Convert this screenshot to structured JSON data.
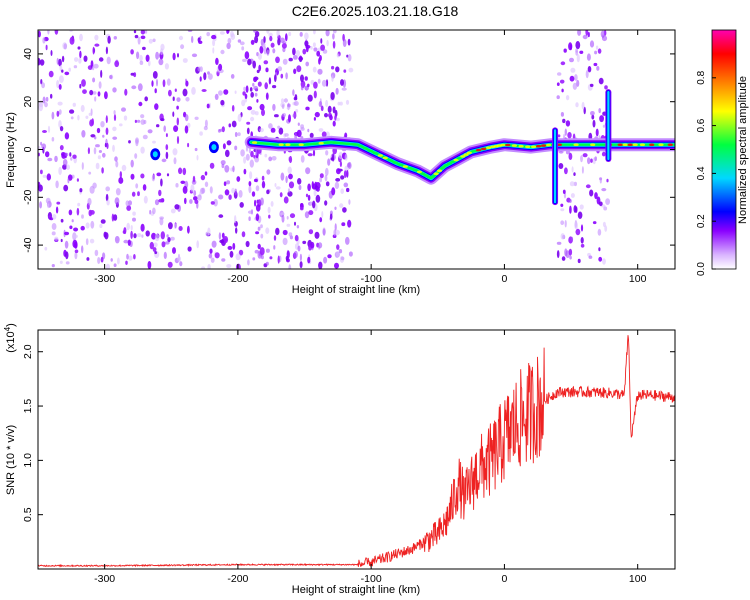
{
  "title": "C2E6.2025.103.21.18.G18",
  "chart_data": [
    {
      "type": "heatmap",
      "xlabel": "Height of straight line (km)",
      "ylabel": "Frequency (Hz)",
      "xlim": [
        -350,
        128
      ],
      "ylim": [
        -50,
        50
      ],
      "x_ticks": [
        -300,
        -200,
        -100,
        0,
        100
      ],
      "y_ticks": [
        -40,
        -20,
        0,
        20,
        40
      ],
      "colorbar": {
        "label": "Normalized spectral amplitude",
        "range": [
          0,
          1
        ],
        "ticks": [
          "0.0",
          "0.2",
          "0.4",
          "0.6",
          "0.8"
        ],
        "tick_values": [
          0,
          0.2,
          0.4,
          0.6,
          0.8
        ],
        "colormap": [
          "#ffffff",
          "#8a00ff",
          "#0000ff",
          "#00d8ff",
          "#00ff40",
          "#ffff00",
          "#ff8000",
          "#ff0000",
          "#ff00b0"
        ]
      },
      "noise_regions": [
        {
          "x": [
            -350,
            -115
          ],
          "density": 0.85
        },
        {
          "x": [
            -190,
            -115
          ],
          "density": 0.35
        },
        {
          "x": [
            40,
            78
          ],
          "density": 0.9
        }
      ],
      "ridge": [
        {
          "x": -190,
          "y": 3
        },
        {
          "x": -170,
          "y": 2
        },
        {
          "x": -150,
          "y": 2
        },
        {
          "x": -130,
          "y": 3
        },
        {
          "x": -110,
          "y": 2
        },
        {
          "x": -95,
          "y": -2
        },
        {
          "x": -80,
          "y": -6
        },
        {
          "x": -65,
          "y": -9
        },
        {
          "x": -55,
          "y": -12
        },
        {
          "x": -45,
          "y": -7
        },
        {
          "x": -35,
          "y": -4
        },
        {
          "x": -25,
          "y": -1
        },
        {
          "x": -10,
          "y": 1
        },
        {
          "x": 0,
          "y": 2
        },
        {
          "x": 20,
          "y": 1
        },
        {
          "x": 35,
          "y": 2
        },
        {
          "x": 85,
          "y": 2
        },
        {
          "x": 100,
          "y": 2
        },
        {
          "x": 128,
          "y": 2
        }
      ],
      "spikes": [
        {
          "x": 38,
          "y_range": [
            -22,
            8
          ]
        },
        {
          "x": 78,
          "y_range": [
            -4,
            24
          ]
        }
      ],
      "blobs": [
        {
          "x": -262,
          "y": -2
        },
        {
          "x": -218,
          "y": 1
        }
      ]
    },
    {
      "type": "line",
      "xlabel": "Height of straight line (km)",
      "ylabel": "SNR (10 * v/v)",
      "y_scale_label": "(x10",
      "y_scale_exp": "4",
      "xlim": [
        -350,
        128
      ],
      "ylim": [
        0,
        2.2
      ],
      "x_ticks": [
        -300,
        -200,
        -100,
        0,
        100
      ],
      "y_ticks": [
        0.5,
        1.0,
        1.5,
        2.0
      ],
      "y_tick_labels": [
        "0.5",
        "1.0",
        "1.5",
        "2.0"
      ],
      "series": [
        {
          "color": "#ee2222",
          "x": [
            -350,
            -300,
            -250,
            -200,
            -150,
            -110,
            -100,
            -90,
            -80,
            -70,
            -60,
            -50,
            -45,
            -40,
            -35,
            -30,
            -25,
            -20,
            -15,
            -10,
            -5,
            0,
            10,
            20,
            30,
            40,
            60,
            80,
            90,
            93,
            95,
            100,
            110,
            128
          ],
          "y": [
            0.03,
            0.03,
            0.035,
            0.04,
            0.04,
            0.04,
            0.06,
            0.1,
            0.14,
            0.18,
            0.25,
            0.32,
            0.4,
            0.55,
            0.8,
            0.65,
            0.78,
            0.9,
            0.95,
            1.0,
            1.1,
            1.2,
            1.35,
            1.45,
            1.55,
            1.63,
            1.63,
            1.62,
            1.6,
            2.2,
            1.2,
            1.6,
            1.6,
            1.58
          ]
        }
      ]
    }
  ]
}
